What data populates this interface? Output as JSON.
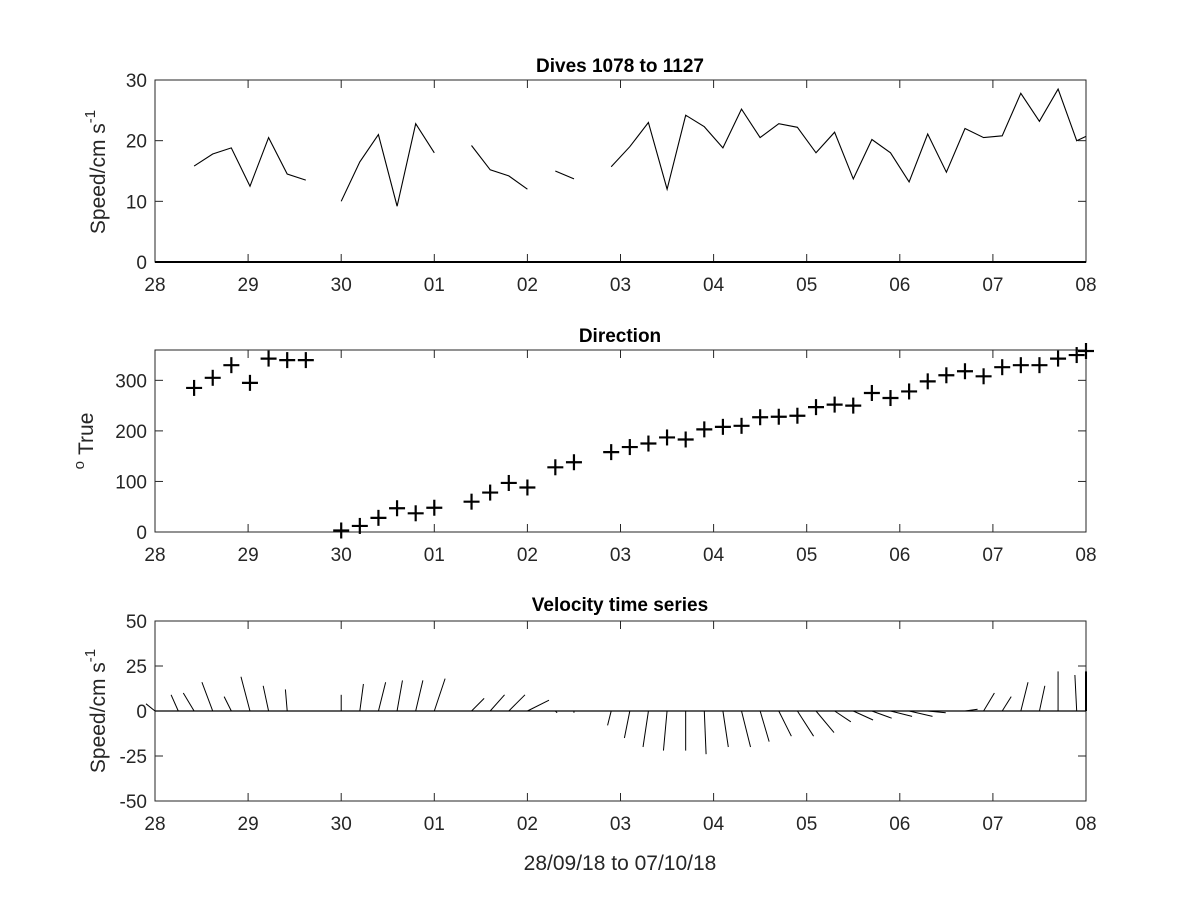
{
  "chart_data": [
    {
      "type": "line",
      "title": "Dives 1078 to 1127",
      "ylabel": "Speed/cm s",
      "ylabel_superscript": "-1",
      "xlim": [
        0,
        10
      ],
      "ylim": [
        0,
        30
      ],
      "xticks": [
        "28",
        "29",
        "30",
        "01",
        "02",
        "03",
        "04",
        "05",
        "06",
        "07",
        "08"
      ],
      "yticks": [
        0,
        10,
        20,
        30
      ],
      "grid": false,
      "series": [
        {
          "x": [
            0.42,
            0.62,
            0.82,
            1.02,
            1.22,
            1.42,
            1.62,
            null,
            2.0,
            2.2,
            2.4,
            2.6,
            2.8,
            3.0,
            null,
            3.4,
            3.6,
            3.8,
            4.0,
            null,
            4.3,
            4.5,
            null,
            4.9,
            5.1,
            5.3,
            5.5,
            5.7,
            5.9,
            6.1,
            6.3,
            6.5,
            6.7,
            6.9,
            7.1,
            7.3,
            7.5,
            7.7,
            7.9,
            8.1,
            8.3,
            8.5,
            8.7,
            8.9,
            9.1,
            9.3,
            9.5,
            9.7,
            9.9,
            10.0
          ],
          "y": [
            15.8,
            17.8,
            18.8,
            12.5,
            20.5,
            14.5,
            13.5,
            null,
            10,
            16.5,
            21,
            9.2,
            22.8,
            18,
            null,
            19.2,
            15.2,
            14.2,
            12,
            null,
            15,
            13.7,
            null,
            15.7,
            19,
            23,
            12,
            24.2,
            22.3,
            18.8,
            25.2,
            20.5,
            22.8,
            22.2,
            18,
            21.4,
            13.7,
            20.2,
            18,
            13.2,
            21.1,
            14.8,
            22,
            20.5,
            20.8,
            27.8,
            23.2,
            28.5,
            20,
            20.7
          ]
        }
      ]
    },
    {
      "type": "scatter",
      "title": "Direction",
      "ylabel": "True",
      "ylabel_prefix_superscript": "o",
      "xlim": [
        0,
        10
      ],
      "ylim": [
        0,
        360
      ],
      "xticks": [
        "28",
        "29",
        "30",
        "01",
        "02",
        "03",
        "04",
        "05",
        "06",
        "07",
        "08"
      ],
      "yticks": [
        0,
        100,
        200,
        300
      ],
      "marker": "+",
      "grid": false,
      "series": [
        {
          "x": [
            0.42,
            0.62,
            0.82,
            1.02,
            1.22,
            1.42,
            1.62,
            2.0,
            2.2,
            2.4,
            2.6,
            2.8,
            3.0,
            3.4,
            3.6,
            3.8,
            4.0,
            4.3,
            4.5,
            4.9,
            5.1,
            5.3,
            5.5,
            5.7,
            5.9,
            6.1,
            6.3,
            6.5,
            6.7,
            6.9,
            7.1,
            7.3,
            7.5,
            7.7,
            7.9,
            8.1,
            8.3,
            8.5,
            8.7,
            8.9,
            9.1,
            9.3,
            9.5,
            9.7,
            9.9,
            10.0
          ],
          "y": [
            285,
            305,
            330,
            295,
            343,
            340,
            340,
            3,
            12,
            28,
            47,
            37,
            48,
            60,
            78,
            97,
            88,
            128,
            138,
            158,
            168,
            175,
            187,
            183,
            203,
            208,
            210,
            227,
            228,
            230,
            247,
            252,
            250,
            275,
            265,
            278,
            298,
            310,
            318,
            308,
            326,
            330,
            330,
            343,
            350,
            358
          ]
        }
      ]
    },
    {
      "type": "quiver",
      "title": "Velocity time series",
      "ylabel": "Speed/cm s",
      "ylabel_superscript": "-1",
      "xlabel": "28/09/18 to 07/10/18",
      "xlim": [
        0,
        10
      ],
      "ylim": [
        -50,
        50
      ],
      "xticks": [
        "28",
        "29",
        "30",
        "01",
        "02",
        "03",
        "04",
        "05",
        "06",
        "07",
        "08"
      ],
      "yticks": [
        50,
        25,
        0,
        -25,
        -50
      ],
      "grid": false,
      "baseline": 0,
      "vectors": {
        "x": [
          0.0,
          0.25,
          0.42,
          0.62,
          0.82,
          1.02,
          1.22,
          1.42,
          1.62,
          2.0,
          2.2,
          2.4,
          2.6,
          2.8,
          3.0,
          3.4,
          3.6,
          3.8,
          4.0,
          4.3,
          4.5,
          4.9,
          5.1,
          5.3,
          5.5,
          5.7,
          5.9,
          6.1,
          6.3,
          6.5,
          6.7,
          6.9,
          7.1,
          7.3,
          7.5,
          7.7,
          7.9,
          8.1,
          8.3,
          8.5,
          8.7,
          8.9,
          9.1,
          9.3,
          9.5,
          9.7,
          9.9,
          10.0
        ],
        "u": [
          -5,
          -4,
          -6,
          -6,
          -4,
          -5,
          -3,
          -1,
          0,
          0,
          2,
          4,
          3,
          4,
          6,
          7,
          8,
          9,
          12,
          1,
          0,
          -2,
          -3,
          -3,
          -2,
          0,
          1,
          3,
          5,
          5,
          7,
          9,
          10,
          9,
          11,
          11,
          12,
          13,
          10,
          8,
          7,
          6,
          5,
          4,
          3,
          0,
          -1,
          0
        ],
        "v": [
          4,
          9,
          10,
          16,
          8,
          19,
          14,
          12,
          0,
          9,
          15,
          16,
          17,
          17,
          18,
          7,
          9,
          9,
          6,
          -1,
          -1,
          -8,
          -15,
          -20,
          -22,
          -22,
          -24,
          -20,
          -20,
          -17,
          -14,
          -14,
          -12,
          -6,
          -5,
          -4,
          -3,
          -3,
          -1,
          0,
          1,
          10,
          8,
          16,
          14,
          22,
          20,
          22
        ]
      }
    }
  ]
}
